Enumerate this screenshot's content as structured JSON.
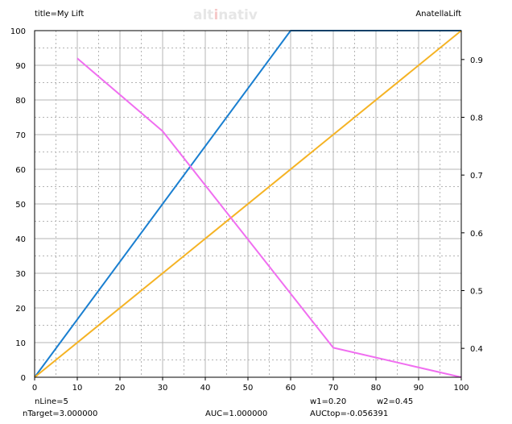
{
  "header": {
    "title": "title=My Lift",
    "brand": "alt",
    "brand_mid": "i",
    "brand_end": "nativ",
    "right_title": "AnatellaLift"
  },
  "footer": {
    "nline": "nLine=5",
    "ntarget": "nTarget=3.000000",
    "auc": "AUC=1.000000",
    "w1": "w1=0.20",
    "w2": "w2=0.45",
    "auctop": "AUCtop=-0.056391"
  },
  "colors": {
    "blue": "#1a7fd0",
    "orange": "#f5b324",
    "pink": "#f06ef0",
    "grid": "#b4b4b4",
    "brand_accent": "#f6c8c8"
  },
  "chart_data": {
    "type": "line",
    "xlim": [
      0,
      100
    ],
    "ylim": [
      0,
      100
    ],
    "y2lim": [
      0.35,
      0.95
    ],
    "x_ticks": [
      "0",
      "10",
      "20",
      "30",
      "40",
      "50",
      "60",
      "70",
      "80",
      "90",
      "100"
    ],
    "y_ticks": [
      "0",
      "10",
      "20",
      "30",
      "40",
      "50",
      "60",
      "70",
      "80",
      "90",
      "100"
    ],
    "y2_ticks": [
      "0.4",
      "0.5",
      "0.6",
      "0.7",
      "0.8",
      "0.9"
    ],
    "grid": true,
    "series": [
      {
        "axis": "left",
        "color": "#1a7fd0",
        "x": [
          0,
          60,
          100
        ],
        "y": [
          0,
          100,
          100
        ]
      },
      {
        "axis": "left",
        "color": "#f5b324",
        "x": [
          0,
          100
        ],
        "y": [
          0,
          100
        ]
      },
      {
        "axis": "right",
        "color": "#f06ef0",
        "x": [
          10,
          30,
          70,
          100
        ],
        "y": [
          0.902,
          0.776,
          0.401,
          0.35
        ]
      }
    ]
  }
}
